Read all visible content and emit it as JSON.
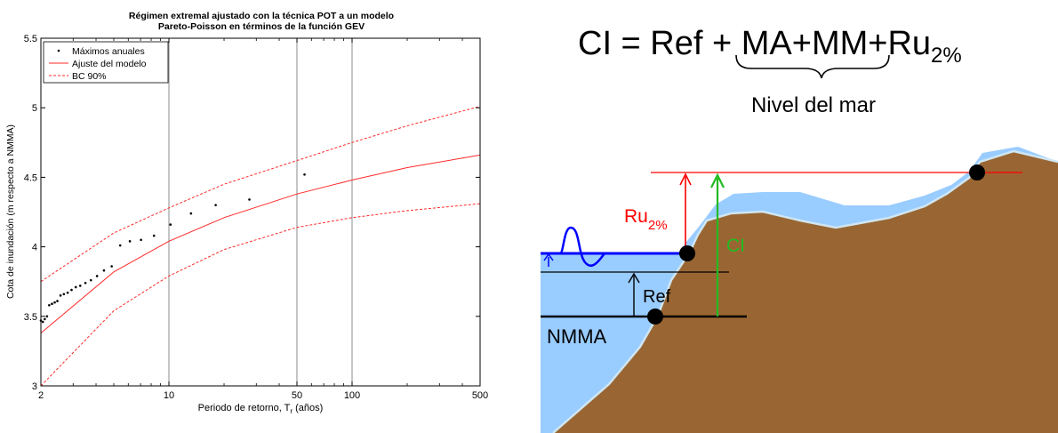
{
  "chart_data": {
    "type": "scatter",
    "title": "Régimen extremal ajustado con la técnica POT a un modelo",
    "subtitle": "Pareto-Poisson en términos de la función GEV",
    "xlabel_main": "Periodo de retorno, T",
    "xlabel_sub": "r",
    "xlabel_tail": " (años)",
    "ylabel": "Cota de inundación (m respecto a NMMA)",
    "x_scale": "log",
    "xlim": [
      2,
      500
    ],
    "ylim": [
      3,
      5.5
    ],
    "x_ticks": [
      2,
      10,
      50,
      100,
      500
    ],
    "x_tick_labels": [
      "2",
      "10",
      "50",
      "100",
      "500"
    ],
    "y_ticks": [
      3,
      3.5,
      4,
      4.5,
      5,
      5.5
    ],
    "y_tick_labels": [
      "3",
      "3.5",
      "4",
      "4.5",
      "5",
      "5.5"
    ],
    "grid": "x-major",
    "legend_position": "top-left",
    "legend": [
      {
        "label": "Máximos anuales",
        "style": "dots",
        "color": "#000000"
      },
      {
        "label": "Ajuste del modelo",
        "style": "solid",
        "color": "#ff2a2a"
      },
      {
        "label": "BC 90%",
        "style": "dashed",
        "color": "#ff2a2a"
      }
    ],
    "series": [
      {
        "name": "Máximos anuales",
        "kind": "points",
        "x": [
          2.0,
          2.05,
          2.1,
          2.16,
          2.22,
          2.3,
          2.38,
          2.46,
          2.56,
          2.67,
          2.8,
          2.94,
          3.1,
          3.28,
          3.5,
          3.75,
          4.05,
          4.42,
          4.87,
          5.42,
          6.12,
          7.04,
          8.29,
          10.2,
          13.2,
          18.0,
          27.5,
          55.0
        ],
        "y": [
          3.47,
          3.46,
          3.48,
          3.5,
          3.58,
          3.59,
          3.6,
          3.61,
          3.65,
          3.66,
          3.67,
          3.69,
          3.71,
          3.72,
          3.74,
          3.76,
          3.79,
          3.83,
          3.86,
          4.01,
          4.04,
          4.05,
          4.08,
          4.16,
          4.24,
          4.3,
          4.34,
          4.52
        ]
      },
      {
        "name": "Ajuste del modelo",
        "kind": "line",
        "x": [
          2,
          5,
          10,
          20,
          50,
          100,
          200,
          500
        ],
        "y": [
          3.38,
          3.82,
          4.04,
          4.21,
          4.38,
          4.48,
          4.57,
          4.66
        ]
      },
      {
        "name": "BC 90% superior",
        "kind": "dashed",
        "x": [
          2,
          5,
          10,
          20,
          50,
          100,
          200,
          500
        ],
        "y": [
          3.75,
          4.1,
          4.28,
          4.45,
          4.62,
          4.75,
          4.87,
          5.01
        ]
      },
      {
        "name": "BC 90% inferior",
        "kind": "dashed",
        "x": [
          2,
          5,
          10,
          20,
          50,
          100,
          200,
          500
        ],
        "y": [
          3.0,
          3.54,
          3.79,
          3.98,
          4.14,
          4.21,
          4.26,
          4.31
        ]
      }
    ]
  },
  "diagram": {
    "formula_left": "CI = Ref + ",
    "formula_terms": "MA+MM+Ru",
    "formula_sub": "2%",
    "brace_label": "Nivel del mar",
    "label_ru": "Ru",
    "label_ru_sub": "2%",
    "label_ci": "CI",
    "label_ref": "Ref",
    "label_nmma": "NMMA",
    "colors": {
      "water": "#99ccff",
      "land": "#996633",
      "sea_level_line": "#0000ff",
      "ru_arrow": "#ff0000",
      "ci_arrow": "#22bb22"
    }
  }
}
